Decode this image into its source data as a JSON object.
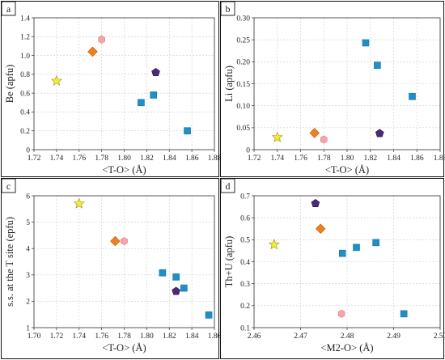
{
  "colors": {
    "star": "#f5ec3a",
    "diamond": "#f07f1e",
    "hexagon": "#f5a6a6",
    "pentagon": "#4a2a7a",
    "square": "#1f8fc8"
  },
  "chart_data": [
    {
      "panel": "a",
      "type": "scatter",
      "xlabel": "<T-O> (Å)",
      "ylabel": "Be (apfu)",
      "xlim": [
        1.72,
        1.88
      ],
      "ylim": [
        0,
        1.4
      ],
      "xticks": [
        "1.72",
        "1.74",
        "1.76",
        "1.78",
        "1.80",
        "1.82",
        "1.84",
        "1.86",
        "1.88"
      ],
      "yticks": [
        "0",
        "0.2",
        "0.4",
        "0.6",
        "0.8",
        "1.0",
        "1.2",
        "1.4"
      ],
      "grid": true,
      "points": [
        {
          "x": 1.74,
          "y": 0.73,
          "marker": "star"
        },
        {
          "x": 1.772,
          "y": 1.04,
          "marker": "diamond"
        },
        {
          "x": 1.78,
          "y": 1.17,
          "marker": "hexagon"
        },
        {
          "x": 1.828,
          "y": 0.82,
          "marker": "pentagon"
        },
        {
          "x": 1.815,
          "y": 0.5,
          "marker": "square"
        },
        {
          "x": 1.826,
          "y": 0.58,
          "marker": "square"
        },
        {
          "x": 1.856,
          "y": 0.2,
          "marker": "square"
        }
      ]
    },
    {
      "panel": "b",
      "type": "scatter",
      "xlabel": "<T-O> (Å)",
      "ylabel": "Li (apfu)",
      "xlim": [
        1.72,
        1.88
      ],
      "ylim": [
        0,
        0.3
      ],
      "xticks": [
        "1.72",
        "1.74",
        "1.76",
        "1.78",
        "1.80",
        "1.82",
        "1.84",
        "1.86",
        "1.88"
      ],
      "yticks": [
        "0",
        "0.05",
        "0.10",
        "0.15",
        "0.20",
        "0.25",
        "0.30"
      ],
      "grid": true,
      "points": [
        {
          "x": 1.74,
          "y": 0.028,
          "marker": "star"
        },
        {
          "x": 1.772,
          "y": 0.038,
          "marker": "diamond"
        },
        {
          "x": 1.78,
          "y": 0.023,
          "marker": "hexagon"
        },
        {
          "x": 1.828,
          "y": 0.037,
          "marker": "pentagon"
        },
        {
          "x": 1.816,
          "y": 0.243,
          "marker": "square"
        },
        {
          "x": 1.826,
          "y": 0.192,
          "marker": "square"
        },
        {
          "x": 1.856,
          "y": 0.121,
          "marker": "square"
        }
      ]
    },
    {
      "panel": "c",
      "type": "scatter",
      "xlabel": "<T-O> (Å)",
      "ylabel": "s.s. at the T site (epfu)",
      "xlim": [
        1.7,
        1.86
      ],
      "ylim": [
        1,
        6
      ],
      "xticks": [
        "1.70",
        "1.72",
        "1.74",
        "1.76",
        "1.78",
        "1.80",
        "1.82",
        "1.84",
        "1.86"
      ],
      "yticks": [
        "1",
        "2",
        "3",
        "4",
        "5",
        "6"
      ],
      "grid": true,
      "points": [
        {
          "x": 1.74,
          "y": 5.7,
          "marker": "star"
        },
        {
          "x": 1.772,
          "y": 4.28,
          "marker": "diamond"
        },
        {
          "x": 1.78,
          "y": 4.28,
          "marker": "hexagon"
        },
        {
          "x": 1.826,
          "y": 2.38,
          "marker": "pentagon"
        },
        {
          "x": 1.814,
          "y": 3.08,
          "marker": "square"
        },
        {
          "x": 1.826,
          "y": 2.92,
          "marker": "square"
        },
        {
          "x": 1.833,
          "y": 2.5,
          "marker": "square"
        },
        {
          "x": 1.855,
          "y": 1.48,
          "marker": "square"
        }
      ]
    },
    {
      "panel": "d",
      "type": "scatter",
      "xlabel": "<M2-O> (Å)",
      "ylabel": "Th+U (apfu)",
      "xlim": [
        2.46,
        2.5
      ],
      "ylim": [
        0.1,
        0.7
      ],
      "xticks": [
        "2.46",
        "2.47",
        "2.48",
        "2.49",
        "2.50"
      ],
      "yticks": [
        "0.1",
        "0.2",
        "0.3",
        "0.4",
        "0.5",
        "0.6",
        "0.7"
      ],
      "grid": true,
      "points": [
        {
          "x": 2.4643,
          "y": 0.478,
          "marker": "star"
        },
        {
          "x": 2.4743,
          "y": 0.55,
          "marker": "diamond"
        },
        {
          "x": 2.4788,
          "y": 0.163,
          "marker": "hexagon"
        },
        {
          "x": 2.4732,
          "y": 0.665,
          "marker": "pentagon"
        },
        {
          "x": 2.479,
          "y": 0.438,
          "marker": "square"
        },
        {
          "x": 2.482,
          "y": 0.465,
          "marker": "square"
        },
        {
          "x": 2.4862,
          "y": 0.487,
          "marker": "square"
        },
        {
          "x": 2.4922,
          "y": 0.163,
          "marker": "square"
        }
      ]
    }
  ]
}
